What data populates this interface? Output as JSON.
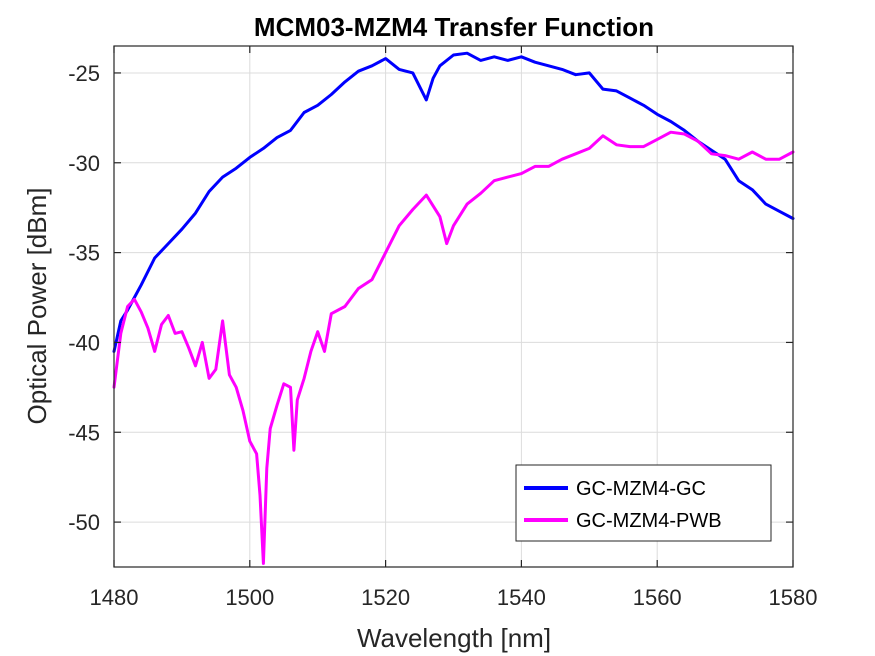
{
  "chart_data": {
    "type": "line",
    "title": "MCM03-MZM4 Transfer Function",
    "xlabel": "Wavelength [nm]",
    "ylabel": "Optical Power [dBm]",
    "xlim": [
      1480,
      1580
    ],
    "ylim": [
      -52.5,
      -23.5
    ],
    "xticks": [
      1480,
      1500,
      1520,
      1540,
      1560,
      1580
    ],
    "yticks": [
      -25,
      -30,
      -35,
      -40,
      -45,
      -50
    ],
    "grid": true,
    "legend_position": "bottom-right",
    "series": [
      {
        "name": "GC-MZM4-GC",
        "color": "#0000ff",
        "x": [
          1480,
          1481,
          1482,
          1483,
          1484,
          1486,
          1488,
          1490,
          1492,
          1494,
          1496,
          1498,
          1500,
          1502,
          1504,
          1506,
          1508,
          1510,
          1512,
          1514,
          1516,
          1518,
          1520,
          1522,
          1524,
          1526,
          1527,
          1528,
          1530,
          1532,
          1534,
          1536,
          1538,
          1540,
          1542,
          1544,
          1546,
          1548,
          1550,
          1552,
          1554,
          1556,
          1558,
          1560,
          1562,
          1564,
          1566,
          1568,
          1570,
          1572,
          1574,
          1576,
          1578,
          1580
        ],
        "y": [
          -40.5,
          -38.8,
          -38.2,
          -37.5,
          -36.8,
          -35.3,
          -34.5,
          -33.7,
          -32.8,
          -31.6,
          -30.8,
          -30.3,
          -29.7,
          -29.2,
          -28.6,
          -28.2,
          -27.2,
          -26.8,
          -26.2,
          -25.5,
          -24.9,
          -24.6,
          -24.2,
          -24.8,
          -25.0,
          -26.5,
          -25.3,
          -24.6,
          -24.0,
          -23.9,
          -24.3,
          -24.1,
          -24.3,
          -24.1,
          -24.4,
          -24.6,
          -24.8,
          -25.1,
          -25.0,
          -25.9,
          -26.0,
          -26.4,
          -26.8,
          -27.3,
          -27.7,
          -28.2,
          -28.8,
          -29.3,
          -29.8,
          -31.0,
          -31.5,
          -32.3,
          -32.7,
          -33.1
        ]
      },
      {
        "name": "GC-MZM4-PWB",
        "color": "#ff00ff",
        "x": [
          1480,
          1481,
          1482,
          1483,
          1484,
          1485,
          1486,
          1487,
          1488,
          1489,
          1490,
          1491,
          1492,
          1493,
          1494,
          1495,
          1496,
          1497,
          1498,
          1499,
          1500,
          1501,
          1501.5,
          1502,
          1502.5,
          1503,
          1504,
          1505,
          1506,
          1506.5,
          1507,
          1508,
          1509,
          1510,
          1511,
          1512,
          1514,
          1516,
          1518,
          1520,
          1522,
          1524,
          1526,
          1528,
          1529,
          1530,
          1532,
          1534,
          1536,
          1538,
          1540,
          1542,
          1544,
          1546,
          1548,
          1550,
          1552,
          1554,
          1556,
          1558,
          1560,
          1562,
          1564,
          1566,
          1568,
          1570,
          1572,
          1574,
          1576,
          1578,
          1580
        ],
        "y": [
          -42.5,
          -39.5,
          -38.0,
          -37.6,
          -38.3,
          -39.2,
          -40.5,
          -39.0,
          -38.5,
          -39.5,
          -39.4,
          -40.3,
          -41.3,
          -40.0,
          -42.0,
          -41.5,
          -38.8,
          -41.8,
          -42.5,
          -43.8,
          -45.5,
          -46.2,
          -48.5,
          -52.3,
          -47.0,
          -44.8,
          -43.5,
          -42.3,
          -42.5,
          -46.0,
          -43.2,
          -42.0,
          -40.5,
          -39.4,
          -40.5,
          -38.4,
          -38.0,
          -37.0,
          -36.5,
          -35.0,
          -33.5,
          -32.6,
          -31.8,
          -33.0,
          -34.5,
          -33.5,
          -32.3,
          -31.7,
          -31.0,
          -30.8,
          -30.6,
          -30.2,
          -30.2,
          -29.8,
          -29.5,
          -29.2,
          -28.5,
          -29.0,
          -29.1,
          -29.1,
          -28.7,
          -28.3,
          -28.4,
          -28.8,
          -29.5,
          -29.6,
          -29.8,
          -29.4,
          -29.8,
          -29.8,
          -29.4
        ]
      }
    ]
  }
}
